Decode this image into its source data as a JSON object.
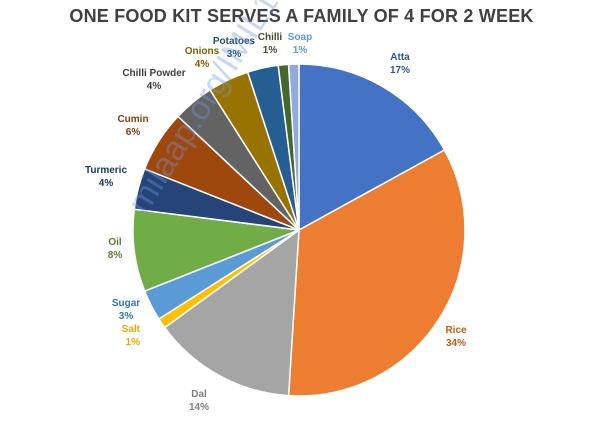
{
  "watermark": "milaap.org/IMIL1642195",
  "chart_data": {
    "type": "pie",
    "title": "ONE FOOD KIT SERVES A FAMILY OF 4 FOR 2 WEEK",
    "slices": [
      {
        "name": "Atta",
        "value": 17,
        "label": "17%",
        "color": "#4472C4",
        "label_color": "#2F5597"
      },
      {
        "name": "Rice",
        "value": 34,
        "label": "34%",
        "color": "#ED7D31",
        "label_color": "#C55A11"
      },
      {
        "name": "Dal",
        "value": 14,
        "label": "14%",
        "color": "#A5A5A5",
        "label_color": "#7F7F7F"
      },
      {
        "name": "Salt",
        "value": 1,
        "label": "1%",
        "color": "#FFC000",
        "label_color": "#E6A800"
      },
      {
        "name": "Sugar",
        "value": 3,
        "label": "3%",
        "color": "#5B9BD5",
        "label_color": "#2E75B6"
      },
      {
        "name": "Oil",
        "value": 8,
        "label": "8%",
        "color": "#70AD47",
        "label_color": "#548235"
      },
      {
        "name": "Turmeric",
        "value": 4,
        "label": "4%",
        "color": "#264478",
        "label_color": "#1F3864"
      },
      {
        "name": "Cumin",
        "value": 6,
        "label": "6%",
        "color": "#9E480E",
        "label_color": "#843C0C"
      },
      {
        "name": "Chilli Powder",
        "value": 4,
        "label": "4%",
        "color": "#636363",
        "label_color": "#404040"
      },
      {
        "name": "Onions",
        "value": 4,
        "label": "4%",
        "color": "#997300",
        "label_color": "#7F6000"
      },
      {
        "name": "Potatoes",
        "value": 3,
        "label": "3%",
        "color": "#255E91",
        "label_color": "#1F4E79"
      },
      {
        "name": "Chilli",
        "value": 1,
        "label": "1%",
        "color": "#43682B",
        "label_color": "#375623"
      },
      {
        "name": "Soap",
        "value": 1,
        "label": "1%",
        "color": "#8FAADC",
        "label_color": "#5B9BD5"
      }
    ]
  }
}
